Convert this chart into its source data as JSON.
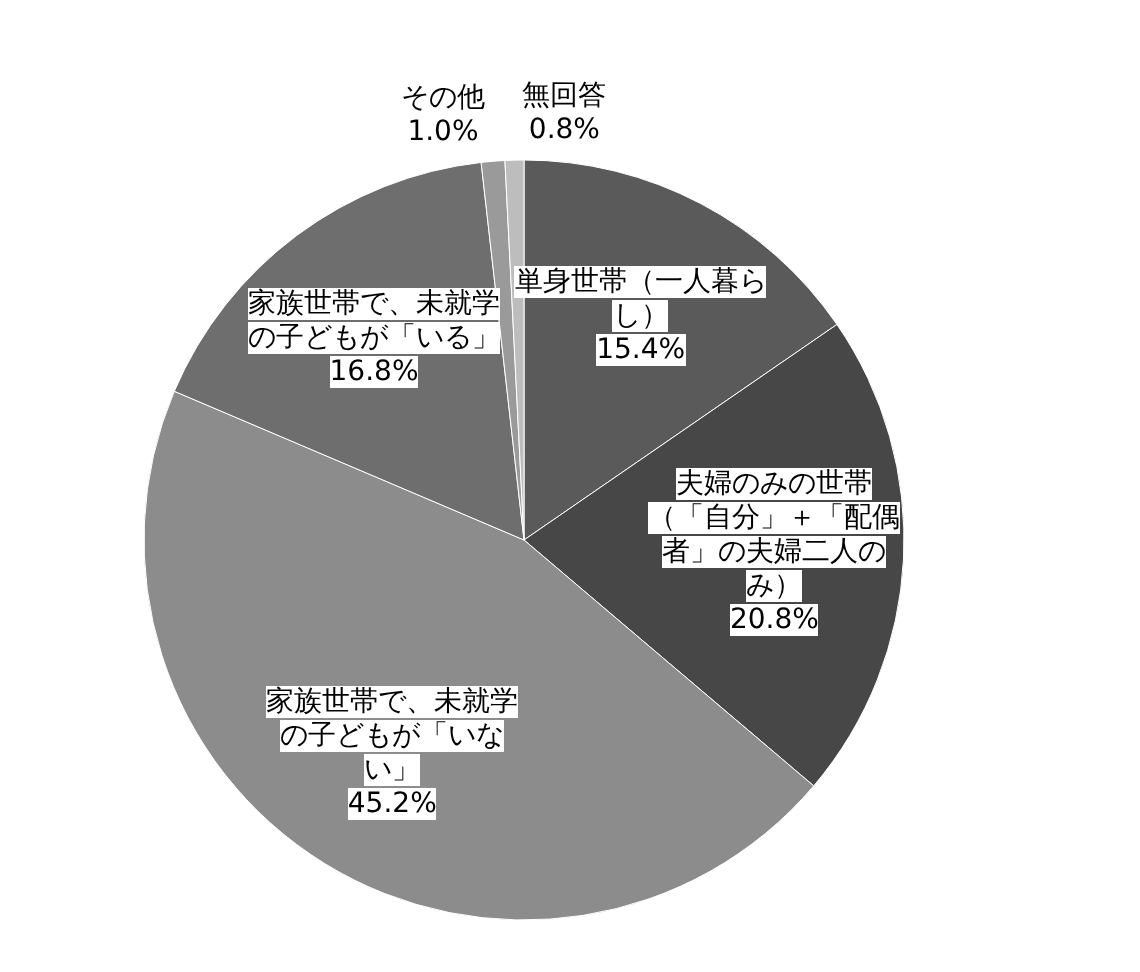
{
  "chart_data": {
    "type": "pie",
    "categories": [
      "単身世帯（一人暮らし）",
      "夫婦のみの世帯（「自分」＋「配偶者」の夫婦二人のみ）",
      "家族世帯で、未就学の子どもが「いない」",
      "家族世帯で、未就学の子どもが「いる」",
      "その他",
      "無回答"
    ],
    "values": [
      15.4,
      20.8,
      45.2,
      16.8,
      1.0,
      0.8
    ],
    "colors": [
      "#5a5a5a",
      "#474747",
      "#8c8c8c",
      "#6e6e6e",
      "#9a9a9a",
      "#bdbdbd"
    ],
    "value_labels": [
      "15.4%",
      "20.8%",
      "45.2%",
      "16.8%",
      "1.0%",
      "0.8%"
    ]
  }
}
